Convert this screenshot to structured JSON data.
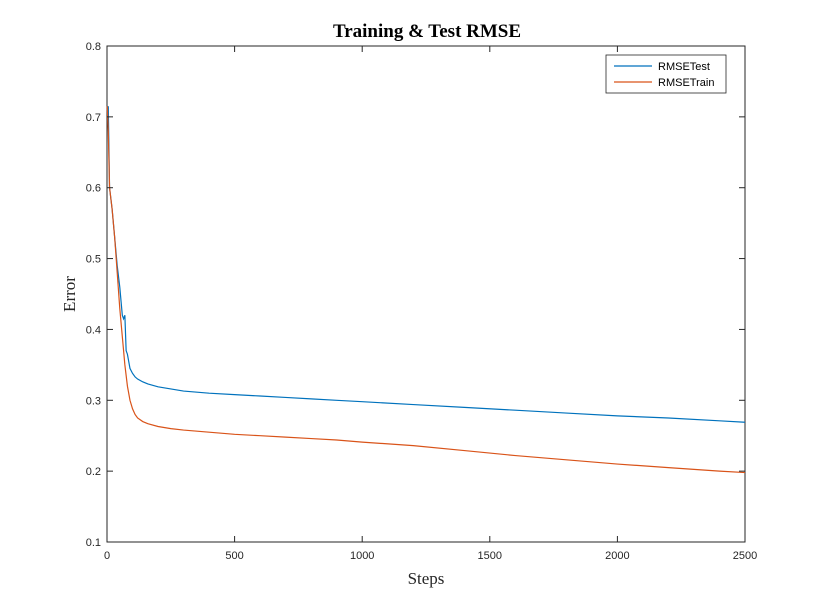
{
  "chart_data": {
    "type": "line",
    "title": "Training & Test RMSE",
    "xlabel": "Steps",
    "ylabel": "Error",
    "xlim": [
      0,
      2500
    ],
    "ylim": [
      0.1,
      0.8
    ],
    "xticks": [
      0,
      500,
      1000,
      1500,
      2000,
      2500
    ],
    "xtick_labels": [
      "0",
      "500",
      "1000",
      "1500",
      "2000",
      "2500"
    ],
    "yticks": [
      0.1,
      0.2,
      0.3,
      0.4,
      0.5,
      0.6,
      0.7,
      0.8
    ],
    "ytick_labels": [
      "0.1",
      "0.2",
      "0.3",
      "0.4",
      "0.5",
      "0.6",
      "0.7",
      "0.8"
    ],
    "grid": false,
    "legend_position": "top-right",
    "series": [
      {
        "name": "RMSETest",
        "color": "#0072BD",
        "x": [
          1,
          5,
          10,
          20,
          30,
          40,
          50,
          60,
          65,
          70,
          75,
          80,
          85,
          90,
          100,
          110,
          120,
          140,
          160,
          200,
          250,
          300,
          400,
          500,
          600,
          700,
          800,
          900,
          1000,
          1200,
          1400,
          1600,
          1800,
          2000,
          2200,
          2400,
          2500
        ],
        "y": [
          0.71,
          0.715,
          0.6,
          0.57,
          0.53,
          0.49,
          0.46,
          0.42,
          0.415,
          0.42,
          0.37,
          0.365,
          0.355,
          0.345,
          0.338,
          0.333,
          0.33,
          0.326,
          0.323,
          0.319,
          0.316,
          0.313,
          0.31,
          0.308,
          0.306,
          0.304,
          0.302,
          0.3,
          0.298,
          0.294,
          0.29,
          0.286,
          0.282,
          0.278,
          0.275,
          0.271,
          0.269
        ]
      },
      {
        "name": "RMSETrain",
        "color": "#D95319",
        "x": [
          1,
          5,
          10,
          20,
          30,
          40,
          50,
          60,
          70,
          80,
          90,
          100,
          110,
          120,
          140,
          160,
          200,
          250,
          300,
          400,
          500,
          600,
          700,
          800,
          900,
          1000,
          1200,
          1400,
          1600,
          1800,
          2000,
          2200,
          2400,
          2500
        ],
        "y": [
          0.715,
          0.68,
          0.6,
          0.57,
          0.53,
          0.48,
          0.43,
          0.39,
          0.35,
          0.32,
          0.3,
          0.288,
          0.28,
          0.275,
          0.27,
          0.267,
          0.263,
          0.26,
          0.258,
          0.255,
          0.252,
          0.25,
          0.248,
          0.246,
          0.244,
          0.241,
          0.236,
          0.229,
          0.222,
          0.216,
          0.21,
          0.205,
          0.2,
          0.198
        ]
      }
    ]
  }
}
